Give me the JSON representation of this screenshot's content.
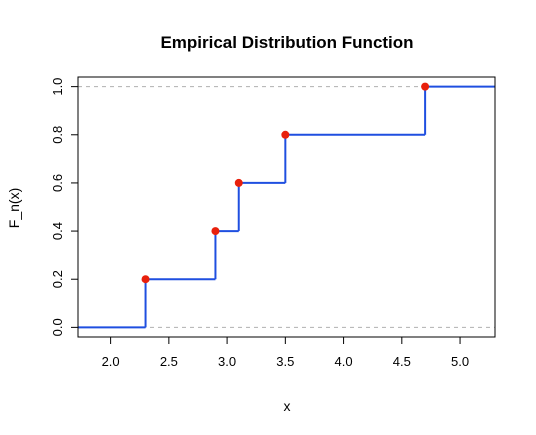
{
  "chart_data": {
    "type": "line",
    "subtype": "step",
    "title": "Empirical Distribution Function",
    "xlabel": "x",
    "ylabel": "F_n(x)",
    "xlim": [
      1.72,
      5.3
    ],
    "ylim": [
      -0.04,
      1.04
    ],
    "xticks": [
      "2.0",
      "2.5",
      "3.0",
      "3.5",
      "4.0",
      "4.5",
      "5.0"
    ],
    "xtick_values": [
      2.0,
      2.5,
      3.0,
      3.5,
      4.0,
      4.5,
      5.0
    ],
    "yticks": [
      "0.0",
      "0.2",
      "0.4",
      "0.6",
      "0.8",
      "1.0"
    ],
    "ytick_values": [
      0.0,
      0.2,
      0.4,
      0.6,
      0.8,
      1.0
    ],
    "reference_lines_y": [
      0.0,
      1.0
    ],
    "points": [
      {
        "x": 2.3,
        "y": 0.2
      },
      {
        "x": 2.9,
        "y": 0.4
      },
      {
        "x": 3.1,
        "y": 0.6
      },
      {
        "x": 3.5,
        "y": 0.8
      },
      {
        "x": 4.7,
        "y": 1.0
      }
    ],
    "line_color": "#1f4fe0",
    "point_color": "#e8200c",
    "reference_line_color": "#b0b0b0",
    "grid": false
  }
}
